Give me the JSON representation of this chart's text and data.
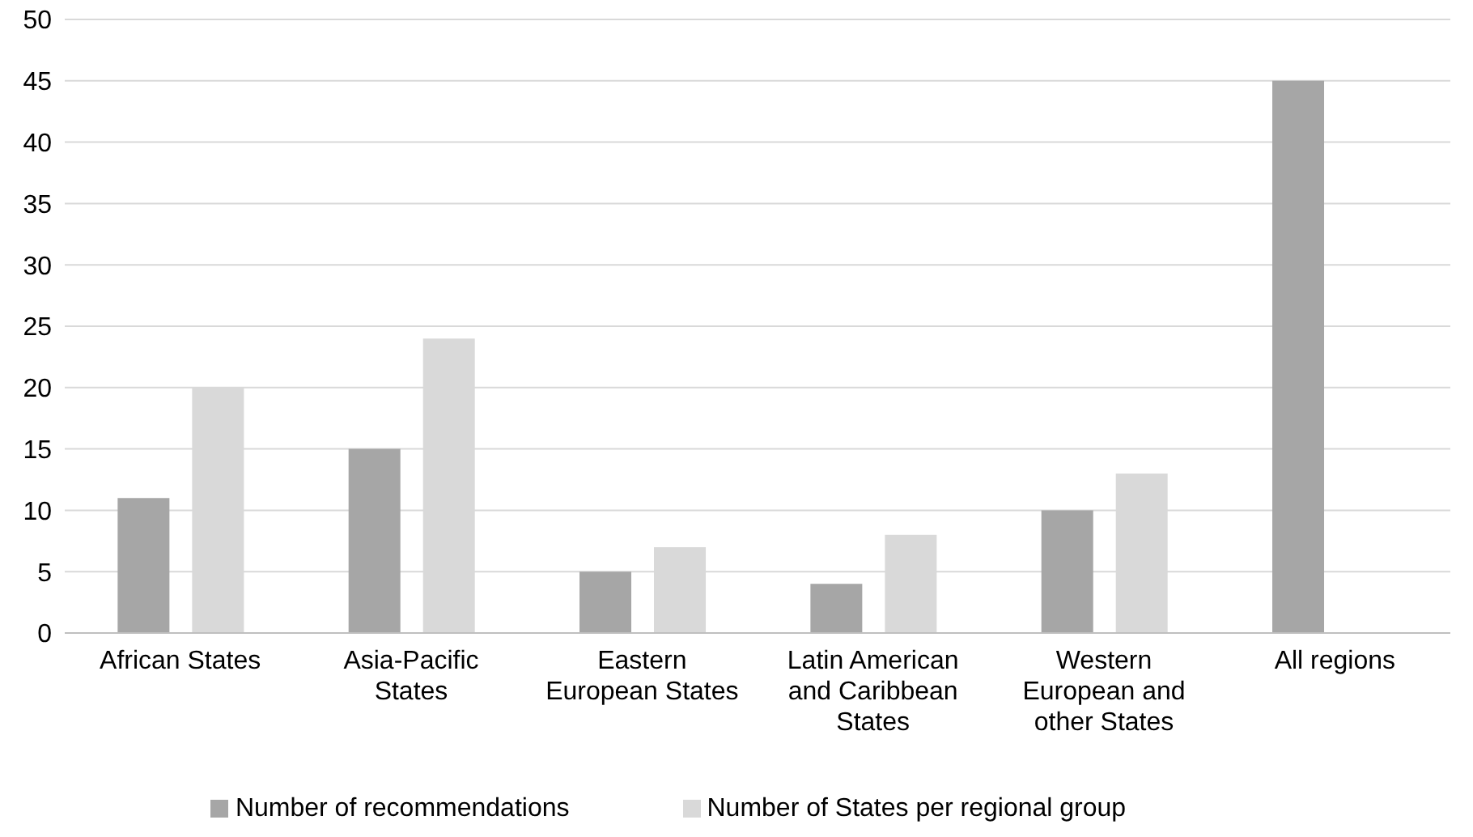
{
  "chart_data": {
    "type": "bar",
    "categories": [
      "African States",
      "Asia-Pacific States",
      "Eastern European States",
      "Latin American and Caribbean States",
      "Western European and other States",
      "All regions"
    ],
    "series": [
      {
        "name": "Number of recommendations",
        "color": "#a6a6a6",
        "values": [
          11,
          15,
          5,
          4,
          10,
          45
        ]
      },
      {
        "name": "Number of States per regional group",
        "color": "#d9d9d9",
        "values": [
          20,
          24,
          7,
          8,
          13,
          null
        ]
      }
    ],
    "ylim": [
      0,
      50
    ],
    "yticks": [
      0,
      5,
      10,
      15,
      20,
      25,
      30,
      35,
      40,
      45,
      50
    ],
    "grid": "y",
    "legend": "bottom"
  }
}
